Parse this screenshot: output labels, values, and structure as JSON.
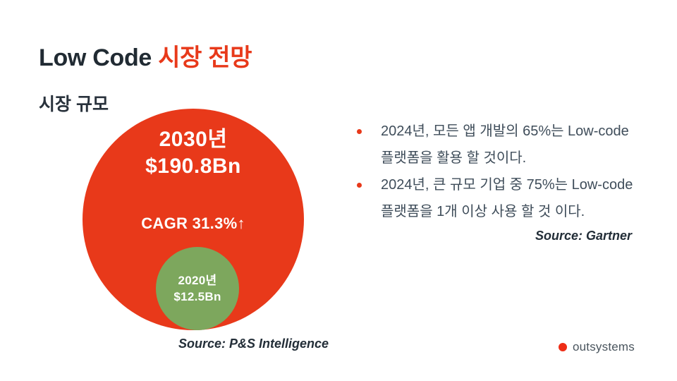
{
  "title": {
    "prefix": "Low Code ",
    "highlight": "시장 전망"
  },
  "section_title": "시장 규모",
  "chart_data": {
    "type": "bubble",
    "title": "시장 규모",
    "series": [
      {
        "label": "2030년",
        "value_bn_usd": 190.8,
        "display": "$190.8Bn",
        "color": "#e8391a"
      },
      {
        "label": "2020년",
        "value_bn_usd": 12.5,
        "display": "$12.5Bn",
        "color": "#7da75d"
      }
    ],
    "annotation": "CAGR 31.3%↑",
    "source": "Source: P&S Intelligence",
    "layout": "nested circles, small 2020 bubble at bottom center of large 2030 bubble"
  },
  "insights": {
    "bullet_color": "#e8391a",
    "items": [
      {
        "lines": [
          "2024년, 모든 앱 개발의 65%는 Low-code",
          "플랫폼을 활용 할 것이다."
        ]
      },
      {
        "lines": [
          "2024년, 큰 규모 기업 중 75%는 Low-code",
          "플랫폼을 1개 이상 사용 할 것 이다."
        ]
      }
    ],
    "source": "Source: Gartner"
  },
  "logo": {
    "text": "outsystems",
    "mark_color": "#ee2d16"
  },
  "colors": {
    "accent": "#e8391a",
    "green": "#7da75d",
    "title_dark": "#212b33",
    "body_text": "#3f4d5a",
    "background": "#ffffff"
  }
}
